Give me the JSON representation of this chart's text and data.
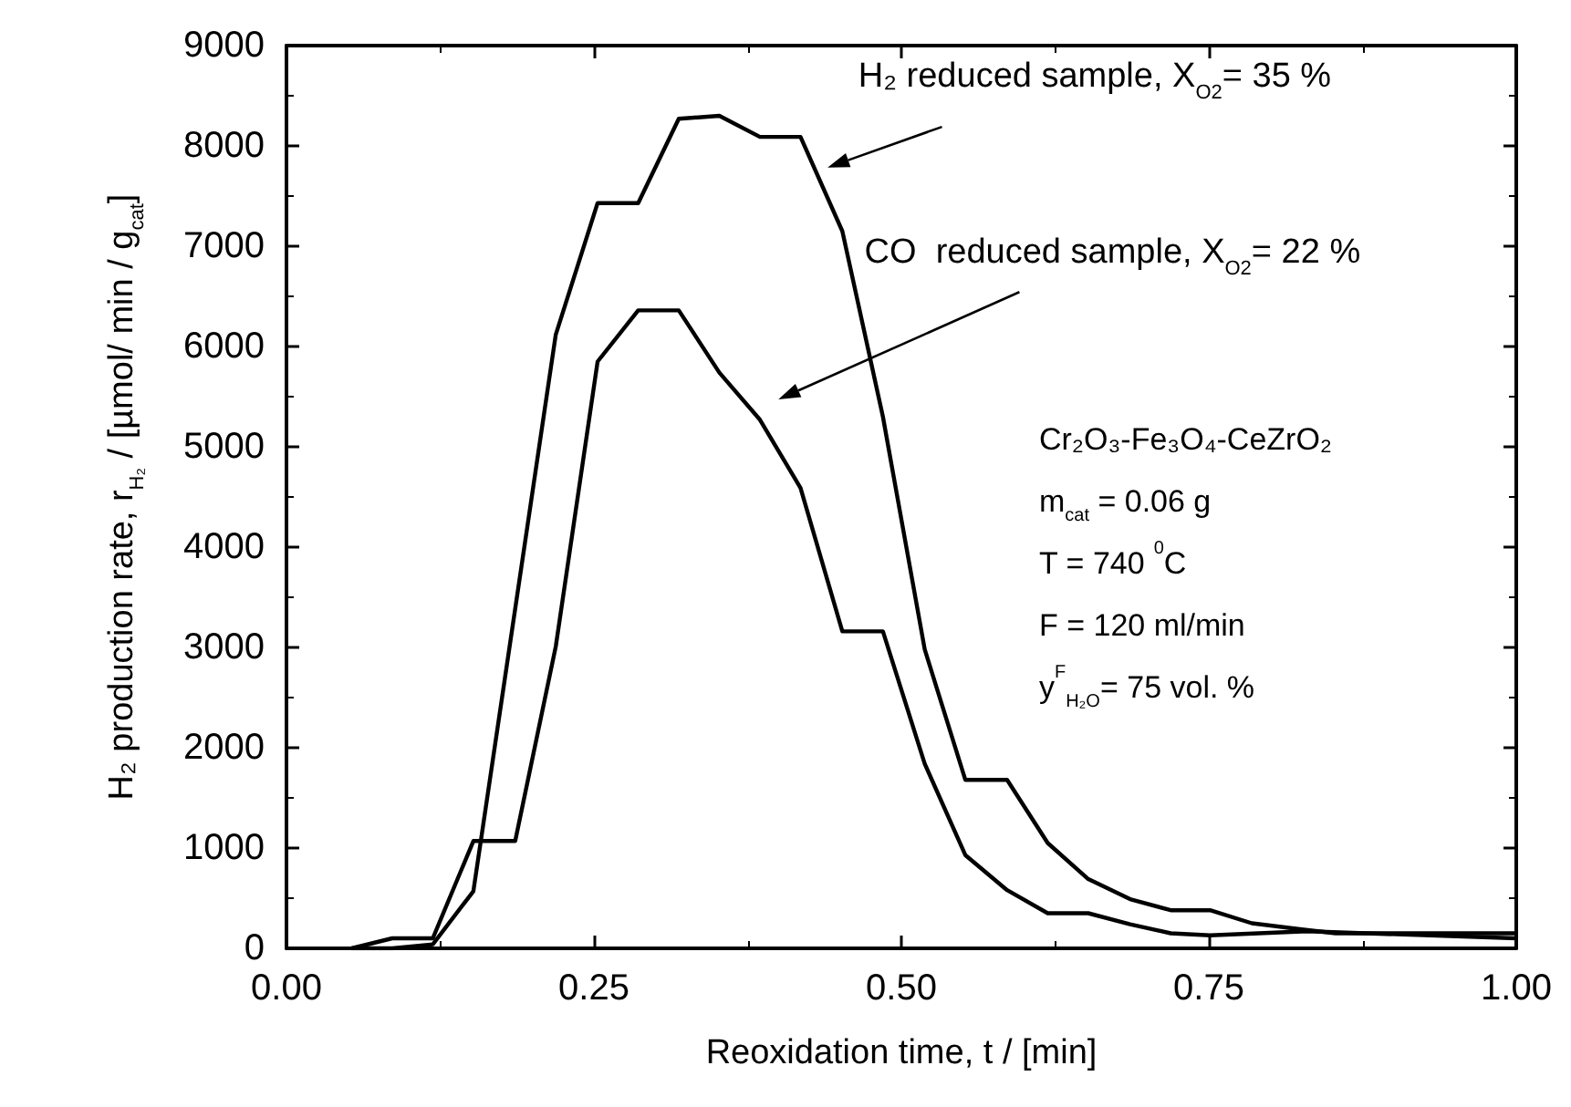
{
  "chart_data": {
    "type": "line",
    "xlabel": "Reoxidation time, t / [min]",
    "ylabel": "H₂ production rate, r$_{H₂}$ / [µmol/ min / g$_{cat}$]",
    "xlim": [
      0,
      1
    ],
    "ylim": [
      0,
      9000
    ],
    "xticks": [
      {
        "value": 0,
        "label": "0.00"
      },
      {
        "value": 0.25,
        "label": "0.25"
      },
      {
        "value": 0.5,
        "label": "0.50"
      },
      {
        "value": 0.75,
        "label": "0.75"
      },
      {
        "value": 1,
        "label": "1.00"
      }
    ],
    "yticks": [
      0,
      1000,
      2000,
      3000,
      4000,
      5000,
      6000,
      7000,
      8000,
      9000
    ],
    "grid": false,
    "marker": "none",
    "line_style": "solid",
    "series": [
      {
        "color": "#000000",
        "x": [
          0.053,
          0.086,
          0.119,
          0.152,
          0.219,
          0.253,
          0.286,
          0.319,
          0.352,
          0.385,
          0.418,
          0.452,
          0.485,
          0.519,
          0.552,
          0.586,
          0.619,
          0.652,
          0.686,
          0.719,
          0.751,
          0.785,
          0.818,
          0.853,
          1.0
        ],
        "values": [
          0,
          0,
          40,
          570,
          6120,
          7430,
          7430,
          8270,
          8300,
          8090,
          8090,
          7150,
          5300,
          2980,
          1680,
          1680,
          1050,
          690,
          490,
          380,
          380,
          250,
          200,
          150,
          150
        ]
      },
      {
        "color": "#000000",
        "x": [
          0.053,
          0.086,
          0.119,
          0.152,
          0.186,
          0.219,
          0.253,
          0.286,
          0.319,
          0.352,
          0.385,
          0.418,
          0.452,
          0.485,
          0.519,
          0.552,
          0.586,
          0.619,
          0.652,
          0.686,
          0.719,
          0.751,
          0.83,
          1.0
        ],
        "values": [
          0,
          100,
          100,
          1070,
          1070,
          3010,
          5850,
          6360,
          6360,
          5740,
          5270,
          4590,
          3160,
          3160,
          1840,
          930,
          580,
          350,
          350,
          240,
          150,
          130,
          170,
          100
        ]
      }
    ],
    "annotations": [
      "H₂ reduced sample, X$_{O2}$= 35 %",
      "CO  reduced sample, X$_{O2}$= 22 %",
      "Cr₂O₃-Fe₃O₄-CeZrO₂",
      "m$_{cat}$ = 0.06 g",
      "T = 740 $^{0}$C",
      "F = 120 ml/min",
      "y$^{F}$$_{H₂O}$= 75 vol. %"
    ]
  }
}
